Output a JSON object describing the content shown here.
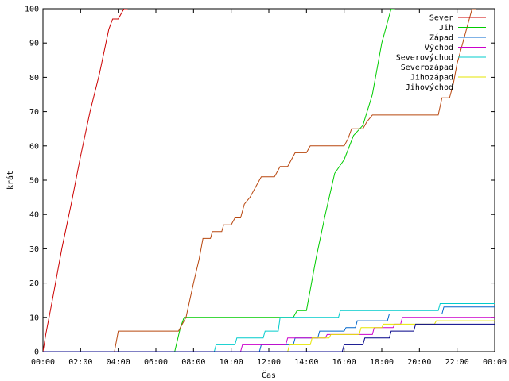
{
  "chart_data": {
    "type": "line",
    "xlabel": "Čas",
    "ylabel": "krát",
    "xlim": [
      0,
      24
    ],
    "ylim": [
      0,
      100
    ],
    "grid": false,
    "legend_position": "top-right",
    "x_ticks": [
      {
        "value": 0,
        "label": "00:00"
      },
      {
        "value": 2,
        "label": "02:00"
      },
      {
        "value": 4,
        "label": "04:00"
      },
      {
        "value": 6,
        "label": "06:00"
      },
      {
        "value": 8,
        "label": "08:00"
      },
      {
        "value": 10,
        "label": "10:00"
      },
      {
        "value": 12,
        "label": "12:00"
      },
      {
        "value": 14,
        "label": "14:00"
      },
      {
        "value": 16,
        "label": "16:00"
      },
      {
        "value": 18,
        "label": "18:00"
      },
      {
        "value": 20,
        "label": "20:00"
      },
      {
        "value": 22,
        "label": "22:00"
      },
      {
        "value": 24,
        "label": "00:00"
      }
    ],
    "y_ticks": [
      {
        "value": 0,
        "label": "0"
      },
      {
        "value": 10,
        "label": "10"
      },
      {
        "value": 20,
        "label": "20"
      },
      {
        "value": 30,
        "label": "30"
      },
      {
        "value": 40,
        "label": "40"
      },
      {
        "value": 50,
        "label": "50"
      },
      {
        "value": 60,
        "label": "60"
      },
      {
        "value": 70,
        "label": "70"
      },
      {
        "value": 80,
        "label": "80"
      },
      {
        "value": 90,
        "label": "90"
      },
      {
        "value": 100,
        "label": "100"
      }
    ],
    "series": [
      {
        "name": "Sever",
        "color": "#cc0000",
        "points": [
          [
            0,
            0
          ],
          [
            0.15,
            5
          ],
          [
            0.5,
            15
          ],
          [
            1.0,
            30
          ],
          [
            1.5,
            43
          ],
          [
            2.0,
            57
          ],
          [
            2.5,
            70
          ],
          [
            3.0,
            81
          ],
          [
            3.5,
            94
          ],
          [
            3.7,
            97
          ],
          [
            4.0,
            97
          ],
          [
            4.3,
            100
          ],
          [
            4.5,
            100
          ]
        ]
      },
      {
        "name": "Jih",
        "color": "#00cc00",
        "points": [
          [
            0,
            0
          ],
          [
            7.0,
            0
          ],
          [
            7.3,
            7
          ],
          [
            7.5,
            10
          ],
          [
            13.3,
            10
          ],
          [
            13.5,
            12
          ],
          [
            14.0,
            12
          ],
          [
            14.5,
            27
          ],
          [
            15.0,
            40
          ],
          [
            15.5,
            52
          ],
          [
            16.0,
            56
          ],
          [
            16.5,
            63
          ],
          [
            17.0,
            66
          ],
          [
            17.5,
            75
          ],
          [
            18.0,
            90
          ],
          [
            18.5,
            100
          ],
          [
            18.7,
            100
          ]
        ]
      },
      {
        "name": "Západ",
        "color": "#0066cc",
        "points": [
          [
            0,
            0
          ],
          [
            11.5,
            0
          ],
          [
            11.6,
            2
          ],
          [
            13.3,
            2
          ],
          [
            13.4,
            4
          ],
          [
            14.6,
            4
          ],
          [
            14.7,
            6
          ],
          [
            16.0,
            6
          ],
          [
            16.1,
            7
          ],
          [
            16.6,
            7
          ],
          [
            16.7,
            9
          ],
          [
            18.3,
            9
          ],
          [
            18.4,
            11
          ],
          [
            21.2,
            11
          ],
          [
            21.3,
            13
          ],
          [
            24,
            13
          ]
        ]
      },
      {
        "name": "Východ",
        "color": "#cc00cc",
        "points": [
          [
            0,
            0
          ],
          [
            10.5,
            0
          ],
          [
            10.6,
            2
          ],
          [
            12.9,
            2
          ],
          [
            13.0,
            4
          ],
          [
            15.0,
            4
          ],
          [
            15.1,
            5
          ],
          [
            17.5,
            5
          ],
          [
            17.6,
            7
          ],
          [
            18.6,
            7
          ],
          [
            18.7,
            8
          ],
          [
            19.0,
            8
          ],
          [
            19.1,
            10
          ],
          [
            24,
            10
          ]
        ]
      },
      {
        "name": "Severovýchod",
        "color": "#00cccc",
        "points": [
          [
            0,
            0
          ],
          [
            9.1,
            0
          ],
          [
            9.2,
            2
          ],
          [
            10.2,
            2
          ],
          [
            10.3,
            4
          ],
          [
            11.7,
            4
          ],
          [
            11.8,
            6
          ],
          [
            12.5,
            6
          ],
          [
            12.6,
            10
          ],
          [
            15.7,
            10
          ],
          [
            15.8,
            12
          ],
          [
            21.0,
            12
          ],
          [
            21.1,
            14
          ],
          [
            24,
            14
          ]
        ]
      },
      {
        "name": "Severozápad",
        "color": "#b8470f",
        "points": [
          [
            0,
            0
          ],
          [
            3.8,
            0
          ],
          [
            4.0,
            6
          ],
          [
            7.0,
            6
          ],
          [
            7.2,
            6
          ],
          [
            7.6,
            10
          ],
          [
            8.0,
            20
          ],
          [
            8.3,
            27
          ],
          [
            8.5,
            33
          ],
          [
            8.9,
            33
          ],
          [
            9.0,
            35
          ],
          [
            9.5,
            35
          ],
          [
            9.6,
            37
          ],
          [
            10.0,
            37
          ],
          [
            10.2,
            39
          ],
          [
            10.5,
            39
          ],
          [
            10.7,
            43
          ],
          [
            11.0,
            45
          ],
          [
            11.3,
            48
          ],
          [
            11.6,
            51
          ],
          [
            12.3,
            51
          ],
          [
            12.6,
            54
          ],
          [
            13.0,
            54
          ],
          [
            13.2,
            56
          ],
          [
            13.4,
            58
          ],
          [
            14.0,
            58
          ],
          [
            14.2,
            60
          ],
          [
            16.0,
            60
          ],
          [
            16.2,
            62
          ],
          [
            16.4,
            65
          ],
          [
            17.0,
            65
          ],
          [
            17.2,
            67
          ],
          [
            17.5,
            69
          ],
          [
            21.0,
            69
          ],
          [
            21.2,
            74
          ],
          [
            21.6,
            74
          ],
          [
            21.8,
            78
          ],
          [
            22.0,
            84
          ],
          [
            22.3,
            90
          ],
          [
            22.6,
            96
          ],
          [
            22.8,
            100
          ],
          [
            23.0,
            100
          ]
        ]
      },
      {
        "name": "Jihozápad",
        "color": "#e6e600",
        "points": [
          [
            0,
            0
          ],
          [
            13.0,
            0
          ],
          [
            13.1,
            2
          ],
          [
            14.2,
            2
          ],
          [
            14.3,
            4
          ],
          [
            15.2,
            4
          ],
          [
            15.3,
            5
          ],
          [
            16.8,
            5
          ],
          [
            16.9,
            7
          ],
          [
            18.0,
            7
          ],
          [
            18.1,
            8
          ],
          [
            20.8,
            8
          ],
          [
            20.9,
            9
          ],
          [
            24,
            9
          ]
        ]
      },
      {
        "name": "Jihovýchod",
        "color": "#000088",
        "points": [
          [
            0,
            0
          ],
          [
            15.9,
            0
          ],
          [
            16.0,
            2
          ],
          [
            17.0,
            2
          ],
          [
            17.1,
            4
          ],
          [
            18.4,
            4
          ],
          [
            18.5,
            6
          ],
          [
            19.7,
            6
          ],
          [
            19.8,
            8
          ],
          [
            24,
            8
          ]
        ]
      }
    ]
  }
}
